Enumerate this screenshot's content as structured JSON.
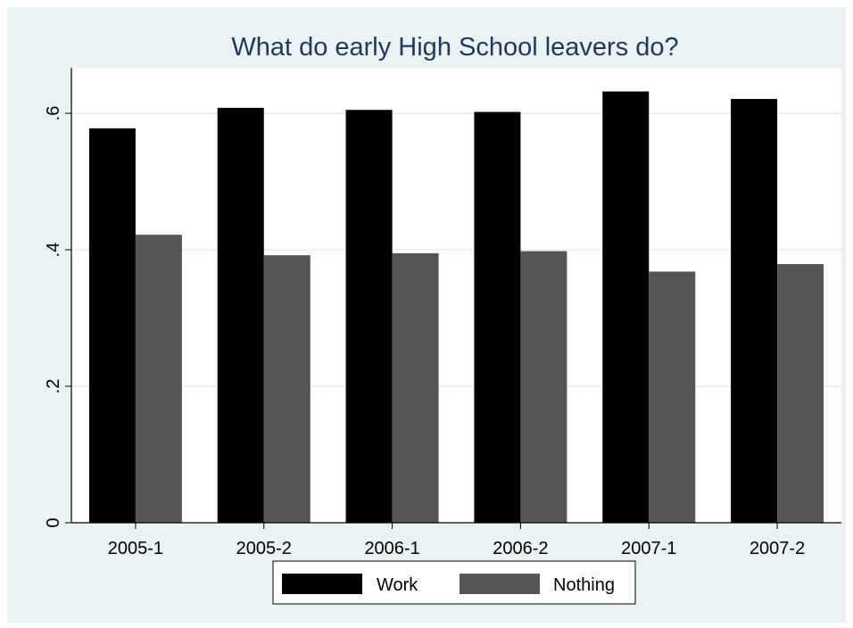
{
  "chart_data": {
    "type": "bar",
    "title": "What do early High School leavers do?",
    "xlabel": "",
    "ylabel": "",
    "categories": [
      "2005-1",
      "2005-2",
      "2006-1",
      "2006-2",
      "2007-1",
      "2007-2"
    ],
    "series": [
      {
        "name": "Work",
        "color": "#000000",
        "values": [
          0.578,
          0.608,
          0.605,
          0.602,
          0.632,
          0.621
        ]
      },
      {
        "name": "Nothing",
        "color": "#555555",
        "values": [
          0.422,
          0.392,
          0.395,
          0.398,
          0.368,
          0.379
        ]
      }
    ],
    "ylim": [
      0,
      0.66
    ],
    "yticks": [
      {
        "value": 0,
        "label": "0"
      },
      {
        "value": 0.2,
        "label": ".2"
      },
      {
        "value": 0.4,
        "label": ".4"
      },
      {
        "value": 0.6,
        "label": ".6"
      }
    ],
    "grid": true,
    "legend_position": "bottom",
    "background_color": "#eaf2f3",
    "plot_background_color": "#ffffff"
  }
}
